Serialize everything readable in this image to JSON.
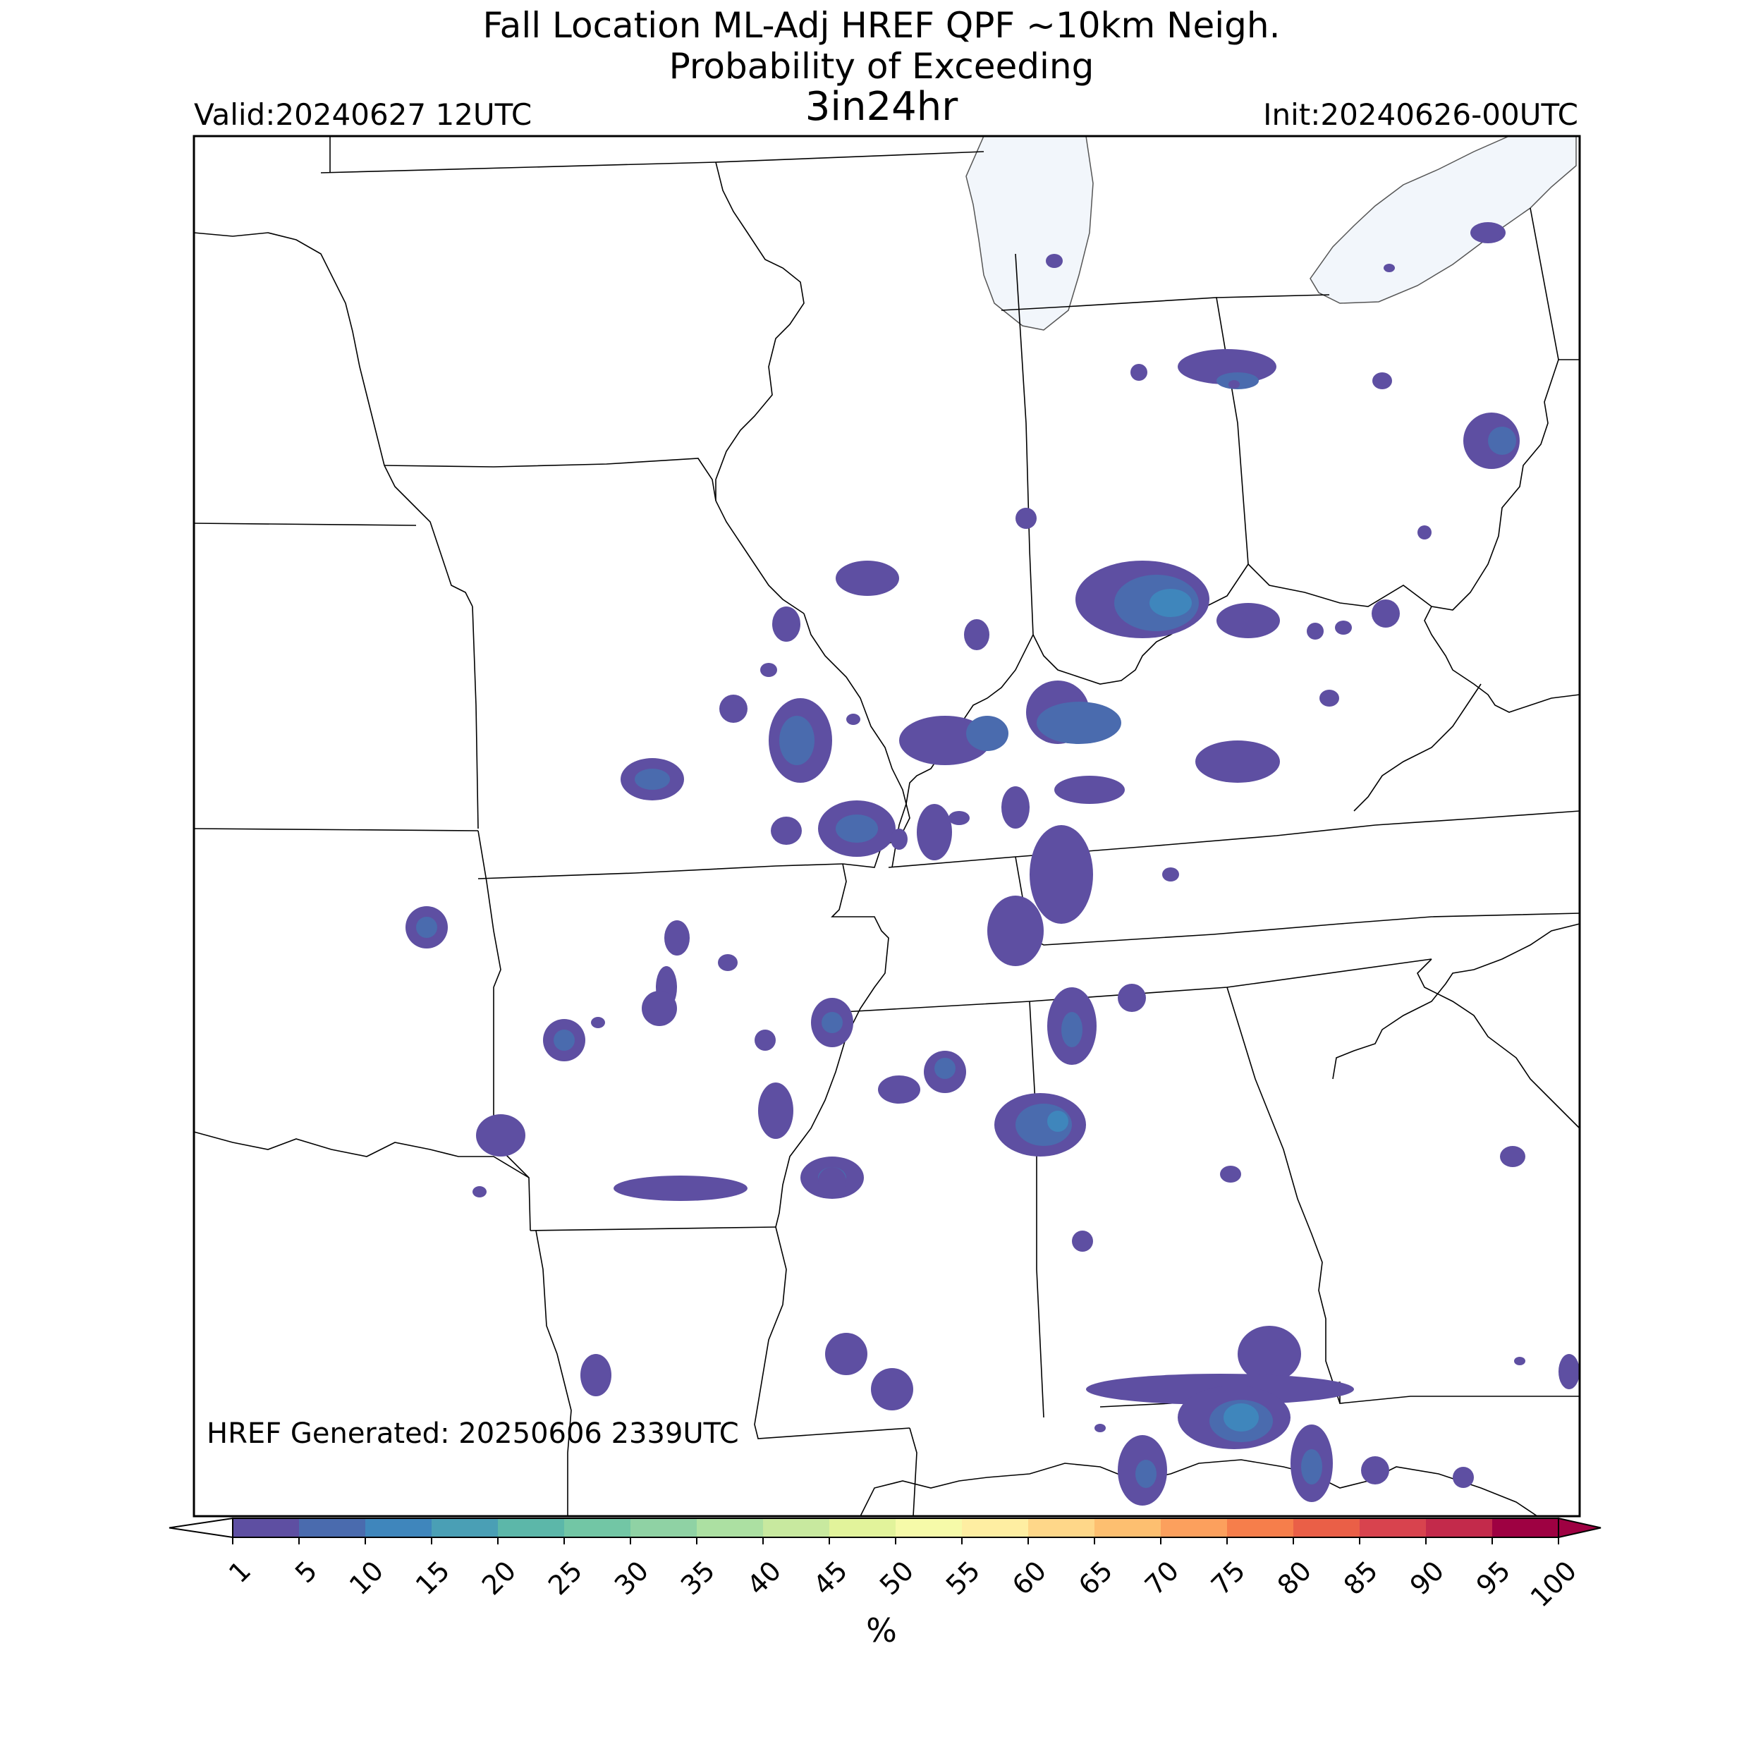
{
  "figure": {
    "title_line1": "Fall Location ML-Adj HREF QPF ~10km Neigh.",
    "title_line2": "Probability of Exceeding",
    "title_line3": "3in24hr",
    "valid": "Valid:20240627 12UTC",
    "init": "Init:20240626-00UTC",
    "generated": "HREF Generated: 20250606 2339UTC"
  },
  "colorbar": {
    "unit": "%",
    "levels": [
      "1",
      "5",
      "10",
      "15",
      "20",
      "25",
      "30",
      "35",
      "40",
      "45",
      "50",
      "55",
      "60",
      "65",
      "70",
      "75",
      "80",
      "85",
      "90",
      "95",
      "100"
    ],
    "colors": [
      "#5e4fa2",
      "#4a6bae",
      "#3f86bc",
      "#4a9fb5",
      "#5cb7a9",
      "#72c6a5",
      "#8fd2a4",
      "#ace0a2",
      "#c8e99f",
      "#e2f39b",
      "#f6faa9",
      "#feeea2",
      "#fed789",
      "#fdbf70",
      "#fca05d",
      "#f67e4b",
      "#ea5f47",
      "#d8434e",
      "#c32a4b",
      "#9e0142"
    ],
    "under_color": "#ffffff",
    "over_color": "#9e0142"
  },
  "map": {
    "lake_color": "#f2f6fb"
  }
}
